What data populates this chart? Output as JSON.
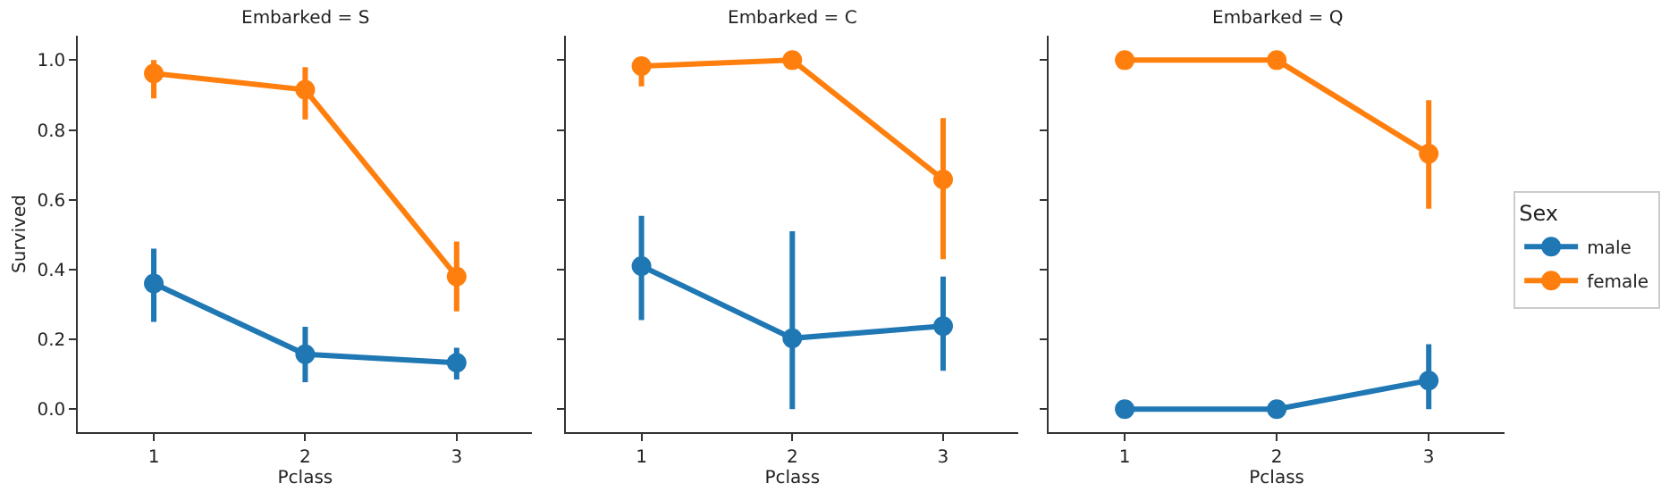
{
  "chart_data": [
    {
      "type": "line",
      "title": "Embarked = S",
      "xlabel": "Pclass",
      "ylabel": "Survived",
      "categories": [
        "1",
        "2",
        "3"
      ],
      "ylim": [
        -0.066,
        1.07
      ],
      "yticks": [
        {
          "value": 0,
          "label": "0.0"
        },
        {
          "value": 0.2,
          "label": "0.2"
        },
        {
          "value": 0.4,
          "label": "0.4"
        },
        {
          "value": 0.6,
          "label": "0.6"
        },
        {
          "value": 0.8,
          "label": "0.8"
        },
        {
          "value": 1,
          "label": "1.0"
        }
      ],
      "marker": "circle",
      "legend": false,
      "series": [
        {
          "color": "#1f77b4",
          "values": [
            0.36,
            0.157,
            0.133
          ],
          "errors": [
            [
              0.25,
              0.46
            ],
            [
              0.077,
              0.236
            ],
            [
              0.085,
              0.176
            ]
          ]
        },
        {
          "color": "#ff7f0e",
          "values": [
            0.962,
            0.915,
            0.38
          ],
          "errors": [
            [
              0.89,
              1.0
            ],
            [
              0.83,
              0.98
            ],
            [
              0.28,
              0.48
            ]
          ]
        }
      ]
    },
    {
      "type": "line",
      "title": "Embarked = C",
      "xlabel": "Pclass",
      "categories": [
        "1",
        "2",
        "3"
      ],
      "ylim": [
        -0.066,
        1.07
      ],
      "yticks": [
        0,
        0.2,
        0.4,
        0.6,
        0.8,
        1
      ],
      "tick_labels": "x",
      "marker": "circle",
      "legend": false,
      "series": [
        {
          "color": "#1f77b4",
          "values": [
            0.41,
            0.203,
            0.238
          ],
          "errors": [
            [
              0.255,
              0.554
            ],
            [
              0.0,
              0.51
            ],
            [
              0.11,
              0.38
            ]
          ]
        },
        {
          "color": "#ff7f0e",
          "values": [
            0.983,
            1.0,
            0.658
          ],
          "errors": [
            [
              0.925,
              1.0
            ],
            null,
            [
              0.43,
              0.834
            ]
          ]
        }
      ]
    },
    {
      "type": "line",
      "title": "Embarked = Q",
      "xlabel": "Pclass",
      "legend_title": "Sex",
      "categories": [
        "1",
        "2",
        "3"
      ],
      "ylim": [
        -0.066,
        1.07
      ],
      "yticks": [
        0,
        0.2,
        0.4,
        0.6,
        0.8,
        1
      ],
      "tick_labels": "x",
      "marker": "circle",
      "legend": "right",
      "series": [
        {
          "name": "male",
          "color": "#1f77b4",
          "values": [
            0.0,
            0.0,
            0.082
          ],
          "errors": [
            null,
            null,
            [
              0.0,
              0.186
            ]
          ]
        },
        {
          "name": "female",
          "color": "#ff7f0e",
          "values": [
            1.0,
            1.0,
            0.732
          ],
          "errors": [
            null,
            null,
            [
              0.574,
              0.885
            ]
          ]
        }
      ]
    }
  ]
}
